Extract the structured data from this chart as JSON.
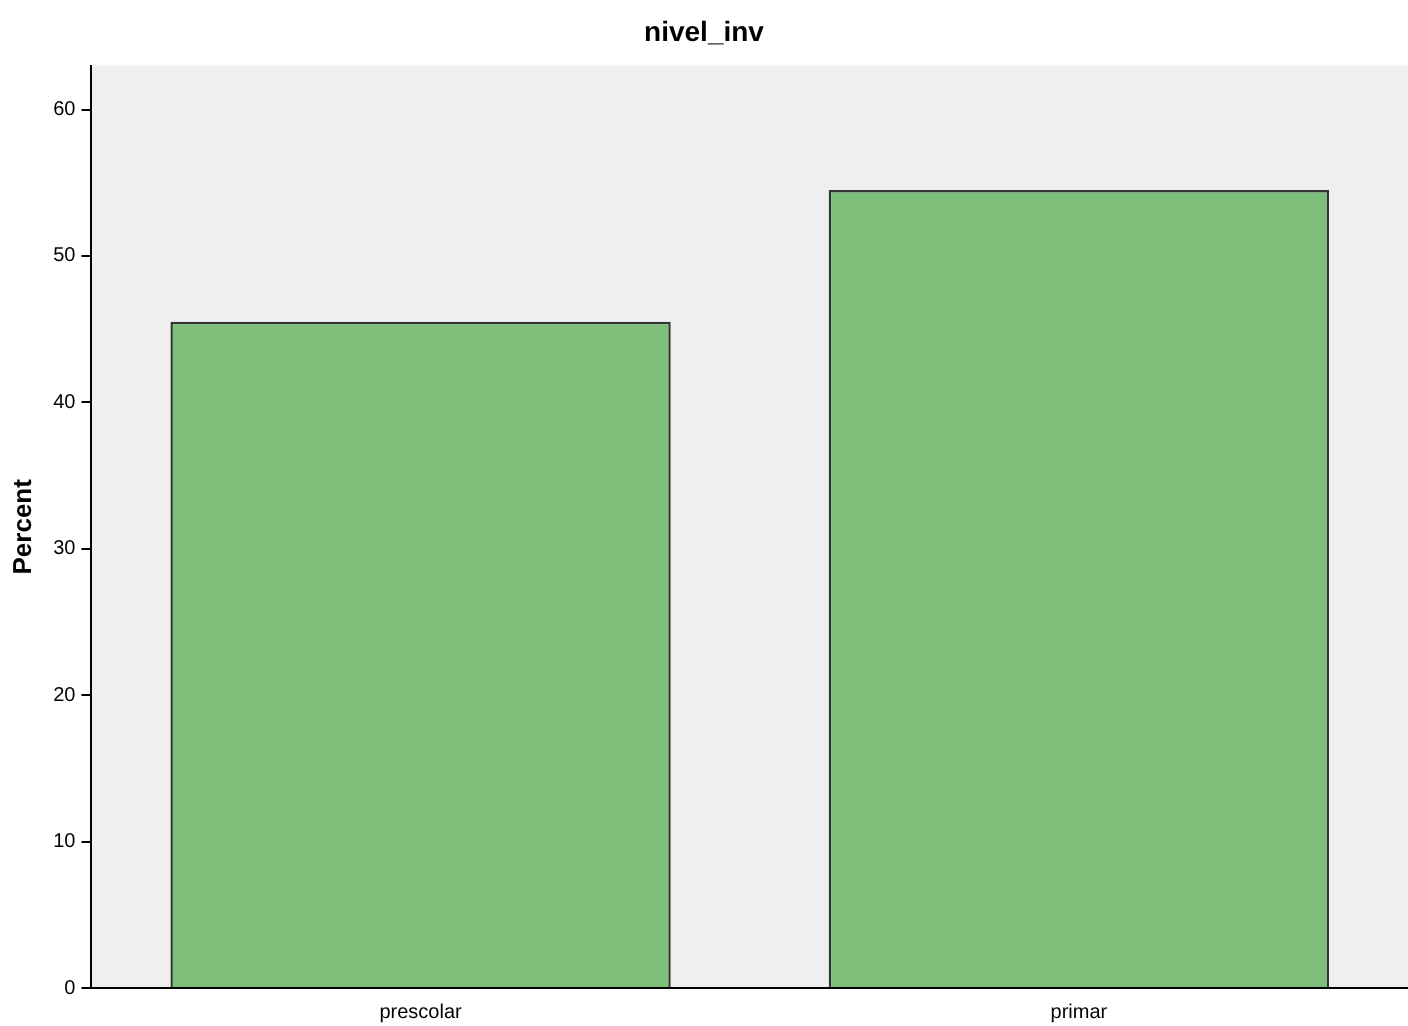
{
  "chart_data": {
    "type": "bar",
    "title": "nivel_inv",
    "ylabel": "Percent",
    "categories": [
      "prescolar",
      "primar"
    ],
    "values": [
      45.5,
      54.5
    ],
    "color": "#7dbe7a",
    "ylim": [
      0,
      63
    ],
    "yticks": [
      0,
      10,
      20,
      30,
      40,
      50,
      60
    ],
    "grid": false,
    "legend": false
  }
}
